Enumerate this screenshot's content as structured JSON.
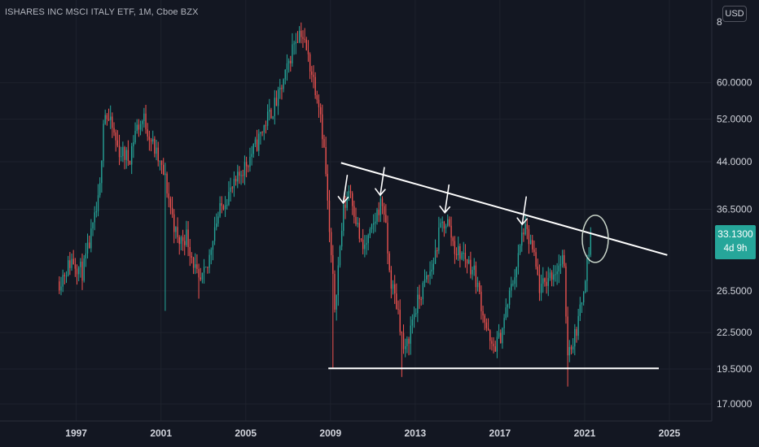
{
  "header": {
    "title": "ISHARES INC MSCI ITALY ETF, 1M, Cboe BZX",
    "currency_button": "USD"
  },
  "price_tag": {
    "value": "33.1300",
    "countdown": "4d 9h"
  },
  "colors": {
    "background": "#131722",
    "up": "#26a69a",
    "down": "#ef5350",
    "annotation": "#ffffff",
    "price_tag": "#26a69a"
  },
  "chart_data": {
    "type": "candlestick",
    "title": "ISHARES INC MSCI ITALY ETF, 1M, Cboe BZX",
    "y_scale": "log",
    "ylim": [
      15.9,
      83.0
    ],
    "xlim": [
      1993.4,
      2027.0
    ],
    "y_ticks": [
      "17.0000",
      "19.5000",
      "22.5000",
      "26.5000",
      "36.5000",
      "44.0000",
      "52.0000",
      "60.0000"
    ],
    "y_tick_partial": "8",
    "x_ticks": [
      "1997",
      "2001",
      "2005",
      "2009",
      "2013",
      "2017",
      "2021",
      "2025"
    ],
    "last_price": 33.13,
    "anchors": [
      [
        1996.2,
        27.5
      ],
      [
        1996.8,
        30.0
      ],
      [
        1997.3,
        28.5
      ],
      [
        1997.8,
        34.0
      ],
      [
        1998.1,
        38.5
      ],
      [
        1998.3,
        54.0
      ],
      [
        1998.7,
        50.0
      ],
      [
        1999.0,
        46.0
      ],
      [
        1999.5,
        44.5
      ],
      [
        1999.8,
        50.0
      ],
      [
        2000.2,
        52.0
      ],
      [
        2000.8,
        45.0
      ],
      [
        2001.2,
        41.0
      ],
      [
        2001.5,
        36.0
      ],
      [
        2001.8,
        32.0
      ],
      [
        2002.2,
        33.0
      ],
      [
        2002.6,
        29.0
      ],
      [
        2002.8,
        27.0
      ],
      [
        2003.2,
        29.0
      ],
      [
        2003.5,
        34.0
      ],
      [
        2004.0,
        38.0
      ],
      [
        2004.5,
        40.0
      ],
      [
        2004.8,
        42.5
      ],
      [
        2005.0,
        43.5
      ],
      [
        2005.5,
        47.0
      ],
      [
        2006.0,
        52.0
      ],
      [
        2006.5,
        56.0
      ],
      [
        2006.9,
        62.0
      ],
      [
        2007.3,
        71.0
      ],
      [
        2007.6,
        74.0
      ],
      [
        2008.0,
        65.0
      ],
      [
        2008.5,
        55.0
      ],
      [
        2008.75,
        44.0
      ],
      [
        2008.95,
        33.0
      ],
      [
        2009.2,
        25.0
      ],
      [
        2009.6,
        36.0
      ],
      [
        2009.9,
        40.0
      ],
      [
        2010.5,
        31.0
      ],
      [
        2010.9,
        33.0
      ],
      [
        2011.3,
        37.0
      ],
      [
        2011.5,
        37.5
      ],
      [
        2011.8,
        28.0
      ],
      [
        2012.2,
        24.5
      ],
      [
        2012.5,
        20.5
      ],
      [
        2012.9,
        24.0
      ],
      [
        2013.4,
        27.0
      ],
      [
        2013.8,
        29.0
      ],
      [
        2014.2,
        34.0
      ],
      [
        2014.5,
        35.0
      ],
      [
        2014.9,
        31.0
      ],
      [
        2015.3,
        30.5
      ],
      [
        2015.8,
        28.5
      ],
      [
        2016.3,
        23.5
      ],
      [
        2016.6,
        21.0
      ],
      [
        2017.0,
        22.0
      ],
      [
        2017.5,
        26.5
      ],
      [
        2017.9,
        30.5
      ],
      [
        2018.1,
        34.0
      ],
      [
        2018.5,
        31.5
      ],
      [
        2018.9,
        26.5
      ],
      [
        2019.3,
        28.0
      ],
      [
        2019.7,
        29.0
      ],
      [
        2020.0,
        30.0
      ],
      [
        2020.2,
        21.0
      ],
      [
        2020.5,
        22.0
      ],
      [
        2020.8,
        24.5
      ],
      [
        2021.0,
        28.0
      ],
      [
        2021.2,
        31.0
      ],
      [
        2021.35,
        33.13
      ]
    ],
    "lows": [
      {
        "x": 2001.2,
        "y": 24.5
      },
      {
        "x": 2002.8,
        "y": 25.7
      },
      {
        "x": 2009.1,
        "y": 19.6
      },
      {
        "x": 2012.4,
        "y": 18.9
      },
      {
        "x": 2020.2,
        "y": 18.2
      }
    ],
    "annotations": {
      "resistance_line": {
        "start": [
          2009.5,
          43.8
        ],
        "end": [
          2024.9,
          30.5
        ]
      },
      "support_line": {
        "start": [
          2008.9,
          19.55
        ],
        "end": [
          2024.5,
          19.55
        ]
      },
      "arrows_x": [
        2009.6,
        2011.35,
        2014.4,
        2018.05
      ],
      "circle": {
        "center": [
          2021.5,
          32.5
        ]
      }
    }
  }
}
